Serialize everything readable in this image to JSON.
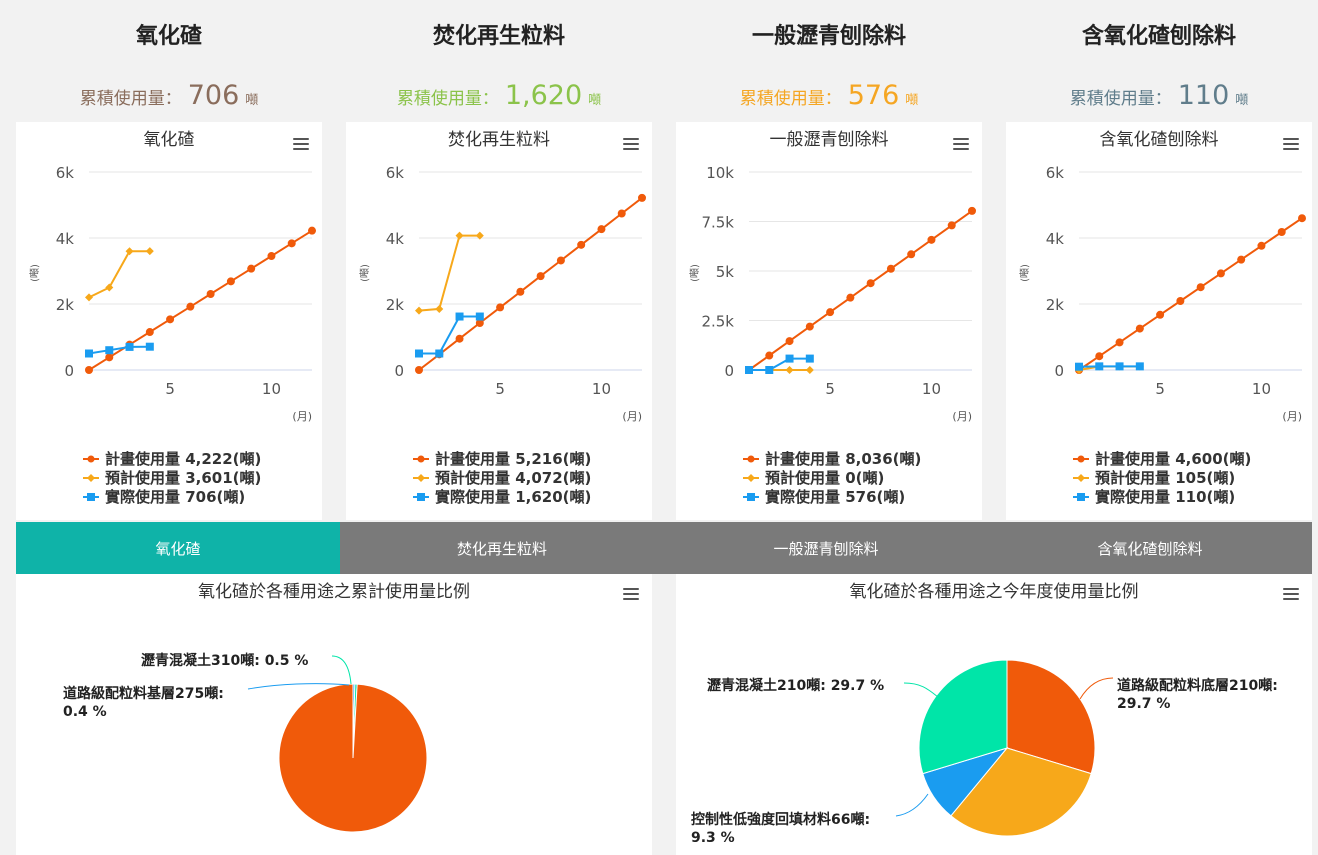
{
  "units": {
    "ton": "噸",
    "month": "(月)"
  },
  "materials": [
    {
      "title": "氧化碴",
      "total_label": "累積使用量：",
      "total_value": "706",
      "total_color": "#8a6d5c",
      "chart_title": "氧化碴",
      "y_label": "(噸)",
      "legend": [
        "計畫使用量 4,222(噸)",
        "預計使用量 3,601(噸)",
        "實際使用量 706(噸)"
      ]
    },
    {
      "title": "焚化再生粒料",
      "total_label": "累積使用量：",
      "total_value": "1,620",
      "total_color": "#8bc34a",
      "chart_title": "焚化再生粒料",
      "y_label": "(噸)",
      "legend": [
        "計畫使用量 5,216(噸)",
        "預計使用量 4,072(噸)",
        "實際使用量 1,620(噸)"
      ]
    },
    {
      "title": "一般瀝青刨除料",
      "total_label": "累積使用量：",
      "total_value": "576",
      "total_color": "#f5a623",
      "chart_title": "一般瀝青刨除料",
      "y_label": "(噸)",
      "legend": [
        "計畫使用量 8,036(噸)",
        "預計使用量 0(噸)",
        "實際使用量 576(噸)"
      ]
    },
    {
      "title": "含氧化碴刨除料",
      "total_label": "累積使用量：",
      "total_value": "110",
      "total_color": "#607d8b",
      "chart_title": "含氧化碴刨除料",
      "y_label": "(噸)",
      "legend": [
        "計畫使用量 4,600(噸)",
        "預計使用量 105(噸)",
        "實際使用量 110(噸)"
      ]
    }
  ],
  "tabs": [
    "氧化碴",
    "焚化再生粒料",
    "一般瀝青刨除料",
    "含氧化碴刨除料"
  ],
  "active_tab": 0,
  "colors": {
    "plan": "#f05a0a",
    "forecast": "#f7a81a",
    "actual": "#1a9cf0",
    "tab_active": "#0fb3a8",
    "tab_inactive": "#7a7a7a"
  },
  "chart_data": [
    {
      "type": "line",
      "title": "氧化碴",
      "ylabel": "(噸)",
      "xlabel": "(月)",
      "xlim": [
        1,
        12
      ],
      "ylim": [
        0,
        6000
      ],
      "yticks": [
        0,
        2000,
        4000,
        6000
      ],
      "ytick_labels": [
        "0",
        "2k",
        "4k",
        "6k"
      ],
      "xticks": [
        5,
        10
      ],
      "series": [
        {
          "name": "計畫使用量",
          "x": [
            1,
            2,
            3,
            4,
            5,
            6,
            7,
            8,
            9,
            10,
            11,
            12
          ],
          "values": [
            0,
            384,
            768,
            1151,
            1535,
            1919,
            2303,
            2687,
            3071,
            3454,
            3838,
            4222
          ]
        },
        {
          "name": "預計使用量",
          "x": [
            1,
            2,
            3,
            4
          ],
          "values": [
            2200,
            2500,
            3600,
            3601
          ]
        },
        {
          "name": "實際使用量",
          "x": [
            1,
            2,
            3,
            4
          ],
          "values": [
            500,
            600,
            700,
            706
          ]
        }
      ]
    },
    {
      "type": "line",
      "title": "焚化再生粒料",
      "ylabel": "(噸)",
      "xlabel": "(月)",
      "xlim": [
        1,
        12
      ],
      "ylim": [
        0,
        6000
      ],
      "yticks": [
        0,
        2000,
        4000,
        6000
      ],
      "ytick_labels": [
        "0",
        "2k",
        "4k",
        "6k"
      ],
      "xticks": [
        5,
        10
      ],
      "series": [
        {
          "name": "計畫使用量",
          "x": [
            1,
            2,
            3,
            4,
            5,
            6,
            7,
            8,
            9,
            10,
            11,
            12
          ],
          "values": [
            0,
            474,
            948,
            1423,
            1897,
            2371,
            2845,
            3319,
            3793,
            4268,
            4742,
            5216
          ]
        },
        {
          "name": "預計使用量",
          "x": [
            1,
            2,
            3,
            4
          ],
          "values": [
            1800,
            1850,
            4072,
            4072
          ]
        },
        {
          "name": "實際使用量",
          "x": [
            1,
            2,
            3,
            4
          ],
          "values": [
            500,
            500,
            1620,
            1620
          ]
        }
      ]
    },
    {
      "type": "line",
      "title": "一般瀝青刨除料",
      "ylabel": "(噸)",
      "xlabel": "(月)",
      "xlim": [
        1,
        12
      ],
      "ylim": [
        0,
        10000
      ],
      "yticks": [
        0,
        2500,
        5000,
        7500,
        10000
      ],
      "ytick_labels": [
        "0",
        "2.5k",
        "5k",
        "7.5k",
        "10k"
      ],
      "xticks": [
        5,
        10
      ],
      "series": [
        {
          "name": "計畫使用量",
          "x": [
            1,
            2,
            3,
            4,
            5,
            6,
            7,
            8,
            9,
            10,
            11,
            12
          ],
          "values": [
            0,
            731,
            1461,
            2192,
            2922,
            3653,
            4383,
            5114,
            5844,
            6575,
            7305,
            8036
          ]
        },
        {
          "name": "預計使用量",
          "x": [
            1,
            2,
            3,
            4
          ],
          "values": [
            0,
            0,
            0,
            0
          ]
        },
        {
          "name": "實際使用量",
          "x": [
            1,
            2,
            3,
            4
          ],
          "values": [
            0,
            0,
            576,
            576
          ]
        }
      ]
    },
    {
      "type": "line",
      "title": "含氧化碴刨除料",
      "ylabel": "(噸)",
      "xlabel": "(月)",
      "xlim": [
        1,
        12
      ],
      "ylim": [
        0,
        6000
      ],
      "yticks": [
        0,
        2000,
        4000,
        6000
      ],
      "ytick_labels": [
        "0",
        "2k",
        "4k",
        "6k"
      ],
      "xticks": [
        5,
        10
      ],
      "series": [
        {
          "name": "計畫使用量",
          "x": [
            1,
            2,
            3,
            4,
            5,
            6,
            7,
            8,
            9,
            10,
            11,
            12
          ],
          "values": [
            0,
            418,
            836,
            1255,
            1673,
            2091,
            2509,
            2927,
            3345,
            3764,
            4182,
            4600
          ]
        },
        {
          "name": "預計使用量",
          "x": [
            1,
            2,
            3,
            4
          ],
          "values": [
            0,
            105,
            105,
            105
          ]
        },
        {
          "name": "實際使用量",
          "x": [
            1,
            2,
            3,
            4
          ],
          "values": [
            100,
            110,
            110,
            110
          ]
        }
      ]
    },
    {
      "type": "pie",
      "title": "氧化碴於各種用途之累計使用量比例",
      "slices": [
        {
          "label": "道路級配粒料基層275噸: 0.4 %",
          "value": 0.4,
          "color": "#1a9cf0"
        },
        {
          "label": "瀝青混凝土310噸: 0.5 %",
          "value": 0.5,
          "color": "#00e5a8"
        },
        {
          "label": "",
          "value": 99.1,
          "color": "#f05a0a"
        }
      ]
    },
    {
      "type": "pie",
      "title": "氧化碴於各種用途之今年度使用量比例",
      "slices": [
        {
          "label": "道路級配粒料底層210噸: 29.7 %",
          "value": 29.7,
          "color": "#f05a0a"
        },
        {
          "label": "",
          "value": 31.3,
          "color": "#f7a81a"
        },
        {
          "label": "控制性低強度回填材料66噸: 9.3 %",
          "value": 9.3,
          "color": "#1a9cf0"
        },
        {
          "label": "瀝青混凝土210噸: 29.7 %",
          "value": 29.7,
          "color": "#00e5a8"
        }
      ]
    }
  ]
}
